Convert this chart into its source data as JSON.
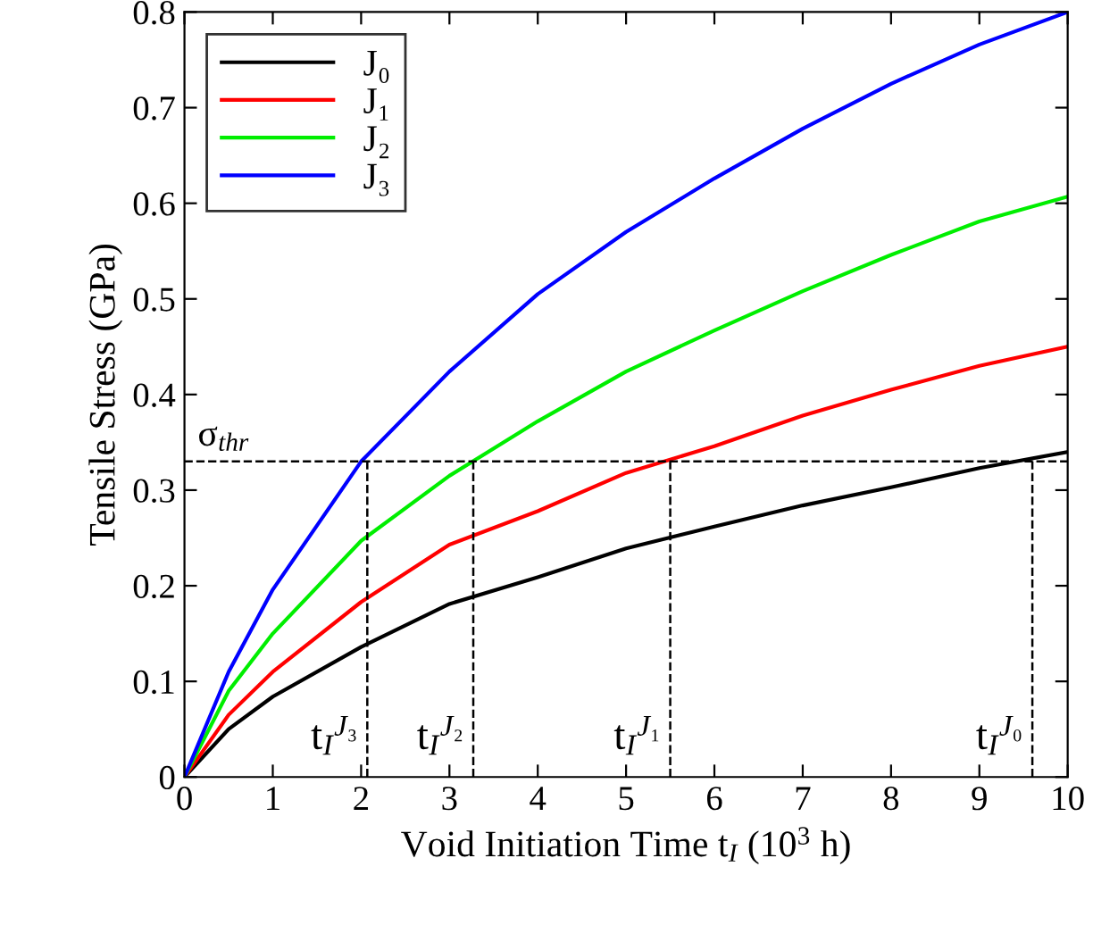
{
  "chart_data": {
    "type": "line",
    "xlabel": "Void Initiation Time t$_{I}$ (10$^{3}$ h)",
    "ylabel": "Tensile Stress (GPa)",
    "x": [
      0,
      0.5,
      1,
      2,
      3,
      4,
      5,
      6,
      7,
      8,
      9,
      10
    ],
    "series": [
      {
        "name": "J₀",
        "color": "#000000",
        "values": [
          0,
          0.05,
          0.084,
          0.136,
          0.181,
          0.209,
          0.239,
          0.262,
          0.284,
          0.303,
          0.323,
          0.34
        ]
      },
      {
        "name": "J₁",
        "color": "#ff0000",
        "values": [
          0,
          0.065,
          0.11,
          0.183,
          0.243,
          0.278,
          0.318,
          0.346,
          0.378,
          0.405,
          0.43,
          0.45
        ]
      },
      {
        "name": "J₂",
        "color": "#00ee00",
        "values": [
          0,
          0.09,
          0.15,
          0.247,
          0.315,
          0.372,
          0.424,
          0.467,
          0.508,
          0.546,
          0.581,
          0.607
        ]
      },
      {
        "name": "J₃",
        "color": "#0000ff",
        "values": [
          0,
          0.11,
          0.196,
          0.33,
          0.424,
          0.505,
          0.57,
          0.626,
          0.678,
          0.725,
          0.766,
          0.8
        ]
      }
    ],
    "ref_lines": [
      {
        "axis": "y",
        "value": 0.33,
        "label": "σ$_{thr}$",
        "line_style": "dashed",
        "color": "#000000"
      },
      {
        "axis": "x",
        "value": 2.07,
        "label": "t$_{I}$$^{J₃}$",
        "line_style": "dashed",
        "color": "#000000"
      },
      {
        "axis": "x",
        "value": 3.27,
        "label": "t$_{I}$$^{J₂}$",
        "line_style": "dashed",
        "color": "#000000"
      },
      {
        "axis": "x",
        "value": 5.5,
        "label": "t$_{I}$$^{J₁}$",
        "line_style": "dashed",
        "color": "#000000"
      },
      {
        "axis": "x",
        "value": 9.6,
        "label": "t$_{I}$$^{J₀}$",
        "line_style": "dashed",
        "color": "#000000"
      }
    ],
    "xlim": [
      0,
      10
    ],
    "xticks": [
      0,
      1,
      2,
      3,
      4,
      5,
      6,
      7,
      8,
      9,
      10
    ],
    "ylim": [
      0,
      0.8
    ],
    "yticks": [
      0,
      0.1,
      0.2,
      0.3,
      0.4,
      0.5,
      0.6,
      0.7,
      0.8
    ],
    "legend": "top left",
    "grid": false,
    "marker": "none",
    "line_style": "solid"
  }
}
